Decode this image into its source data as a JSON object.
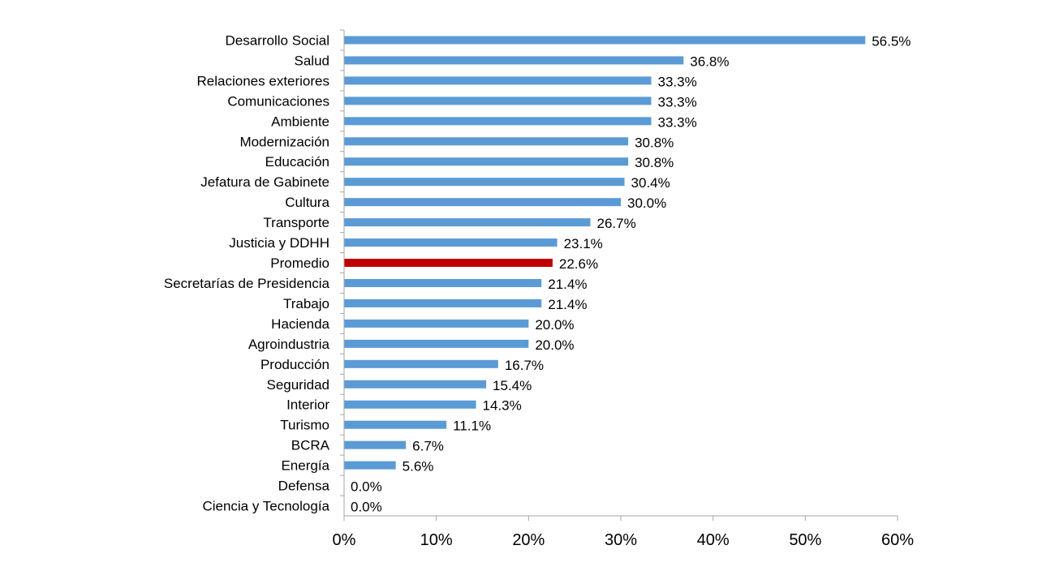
{
  "chart_data": {
    "type": "bar",
    "orientation": "horizontal",
    "title": "",
    "xlabel": "",
    "ylabel": "",
    "xlim": [
      0,
      60
    ],
    "x_ticks": [
      "0%",
      "10%",
      "20%",
      "30%",
      "40%",
      "50%",
      "60%"
    ],
    "grid": false,
    "categories": [
      "Desarrollo Social",
      "Salud",
      "Relaciones exteriores",
      "Comunicaciones",
      "Ambiente",
      "Modernización",
      "Educación",
      "Jefatura de Gabinete",
      "Cultura",
      "Transporte",
      "Justicia y DDHH",
      "Promedio",
      "Secretarías de Presidencia",
      "Trabajo",
      "Hacienda",
      "Agroindustria",
      "Producción",
      "Seguridad",
      "Interior",
      "Turismo",
      "BCRA",
      "Energía",
      "Defensa",
      "Ciencia y Tecnología"
    ],
    "values": [
      56.5,
      36.8,
      33.3,
      33.3,
      33.3,
      30.8,
      30.8,
      30.4,
      30.0,
      26.7,
      23.1,
      22.6,
      21.4,
      21.4,
      20.0,
      20.0,
      16.7,
      15.4,
      14.3,
      11.1,
      6.7,
      5.6,
      0.0,
      0.0
    ],
    "value_labels": [
      "56.5%",
      "36.8%",
      "33.3%",
      "33.3%",
      "33.3%",
      "30.8%",
      "30.8%",
      "30.4%",
      "30.0%",
      "26.7%",
      "23.1%",
      "22.6%",
      "21.4%",
      "21.4%",
      "20.0%",
      "20.0%",
      "16.7%",
      "15.4%",
      "14.3%",
      "11.1%",
      "6.7%",
      "5.6%",
      "0.0%",
      "0.0%"
    ],
    "highlight_category": "Promedio",
    "colors": {
      "bar": "#5b9bd5",
      "highlight": "#c00000",
      "axis": "#a6a6a6"
    }
  }
}
